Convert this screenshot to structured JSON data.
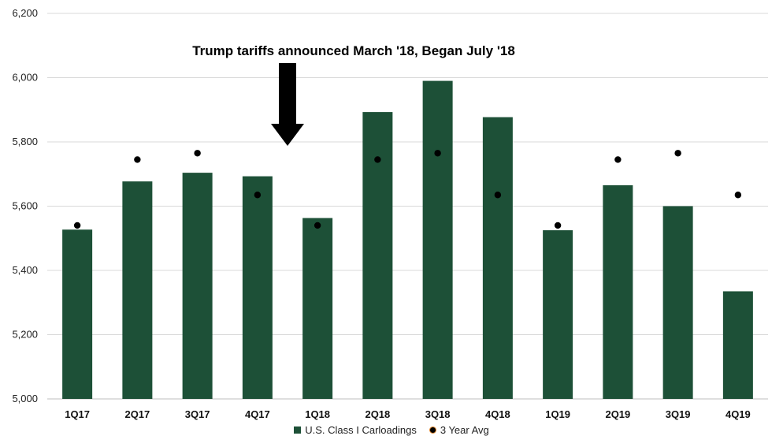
{
  "chart_data": {
    "type": "bar",
    "title": "",
    "xlabel": "",
    "ylabel": "",
    "ylim": [
      5000,
      6200
    ],
    "yticks": [
      5000,
      5200,
      5400,
      5600,
      5800,
      6000,
      6200
    ],
    "ytick_labels": [
      "5,000",
      "5,200",
      "5,400",
      "5,600",
      "5,800",
      "6,000",
      "6,200"
    ],
    "grid": true,
    "categories": [
      "1Q17",
      "2Q17",
      "3Q17",
      "4Q17",
      "1Q18",
      "2Q18",
      "3Q18",
      "4Q18",
      "1Q19",
      "2Q19",
      "3Q19",
      "4Q19"
    ],
    "series": [
      {
        "name": "U.S. Class I Carloadings",
        "kind": "bar",
        "color": "#1d5037",
        "values": [
          5527,
          5677,
          5704,
          5693,
          5563,
          5893,
          5990,
          5877,
          5525,
          5665,
          5600,
          5335
        ]
      },
      {
        "name": "3 Year Avg",
        "kind": "marker",
        "color": "#000000",
        "edge_color": "#d9822b",
        "values": [
          5540,
          5745,
          5765,
          5635,
          5540,
          5745,
          5765,
          5635,
          5540,
          5745,
          5765,
          5635
        ]
      }
    ],
    "annotation": {
      "text": "Trump tariffs announced March '18, Began July '18",
      "arrow_between": [
        "4Q17",
        "1Q18"
      ]
    },
    "legend_position": "bottom-center"
  }
}
